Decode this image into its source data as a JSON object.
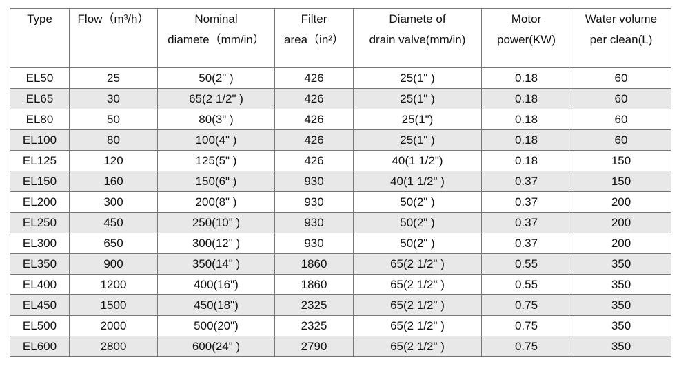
{
  "table": {
    "header": [
      [
        "Type"
      ],
      [
        "Flow（m³/h）"
      ],
      [
        "Nominal",
        "diamete（mm/in）"
      ],
      [
        "Filter",
        "area（in²）"
      ],
      [
        "Diamete of",
        "drain valve(mm/in)"
      ],
      [
        "Motor",
        "power(KW)"
      ],
      [
        "Water volume",
        "per clean(L)"
      ]
    ],
    "rows": [
      [
        "EL50",
        "25",
        "50(2\" )",
        "426",
        "25(1\" )",
        "0.18",
        "60"
      ],
      [
        "EL65",
        "30",
        "65(2 1/2\" )",
        "426",
        "25(1\" )",
        "0.18",
        "60"
      ],
      [
        "EL80",
        "50",
        "80(3\" )",
        "426",
        "25(1\")",
        "0.18",
        "60"
      ],
      [
        "EL100",
        "80",
        "100(4\" )",
        "426",
        "25(1\" )",
        "0.18",
        "60"
      ],
      [
        "EL125",
        "120",
        "125(5\" )",
        "426",
        "40(1 1/2\")",
        "0.18",
        "150"
      ],
      [
        "EL150",
        "160",
        "150(6\" )",
        "930",
        "40(1 1/2\" )",
        "0.37",
        "150"
      ],
      [
        "EL200",
        "300",
        "200(8\" )",
        "930",
        "50(2\" )",
        "0.37",
        "200"
      ],
      [
        "EL250",
        "450",
        "250(10\" )",
        "930",
        "50(2\" )",
        "0.37",
        "200"
      ],
      [
        "EL300",
        "650",
        "300(12\" )",
        "930",
        "50(2\" )",
        "0.37",
        "200"
      ],
      [
        "EL350",
        "900",
        "350(14\" )",
        "1860",
        "65(2 1/2\" )",
        "0.55",
        "350"
      ],
      [
        "EL400",
        "1200",
        "400(16\")",
        "1860",
        "65(2 1/2\" )",
        "0.55",
        "350"
      ],
      [
        "EL450",
        "1500",
        "450(18\")",
        "2325",
        "65(2 1/2\" )",
        "0.75",
        "350"
      ],
      [
        "EL500",
        "2000",
        "500(20\")",
        "2325",
        "65(2 1/2\" )",
        "0.75",
        "350"
      ],
      [
        "EL600",
        "2800",
        "600(24\" )",
        "2790",
        "65(2 1/2\" )",
        "0.75",
        "350"
      ]
    ]
  }
}
